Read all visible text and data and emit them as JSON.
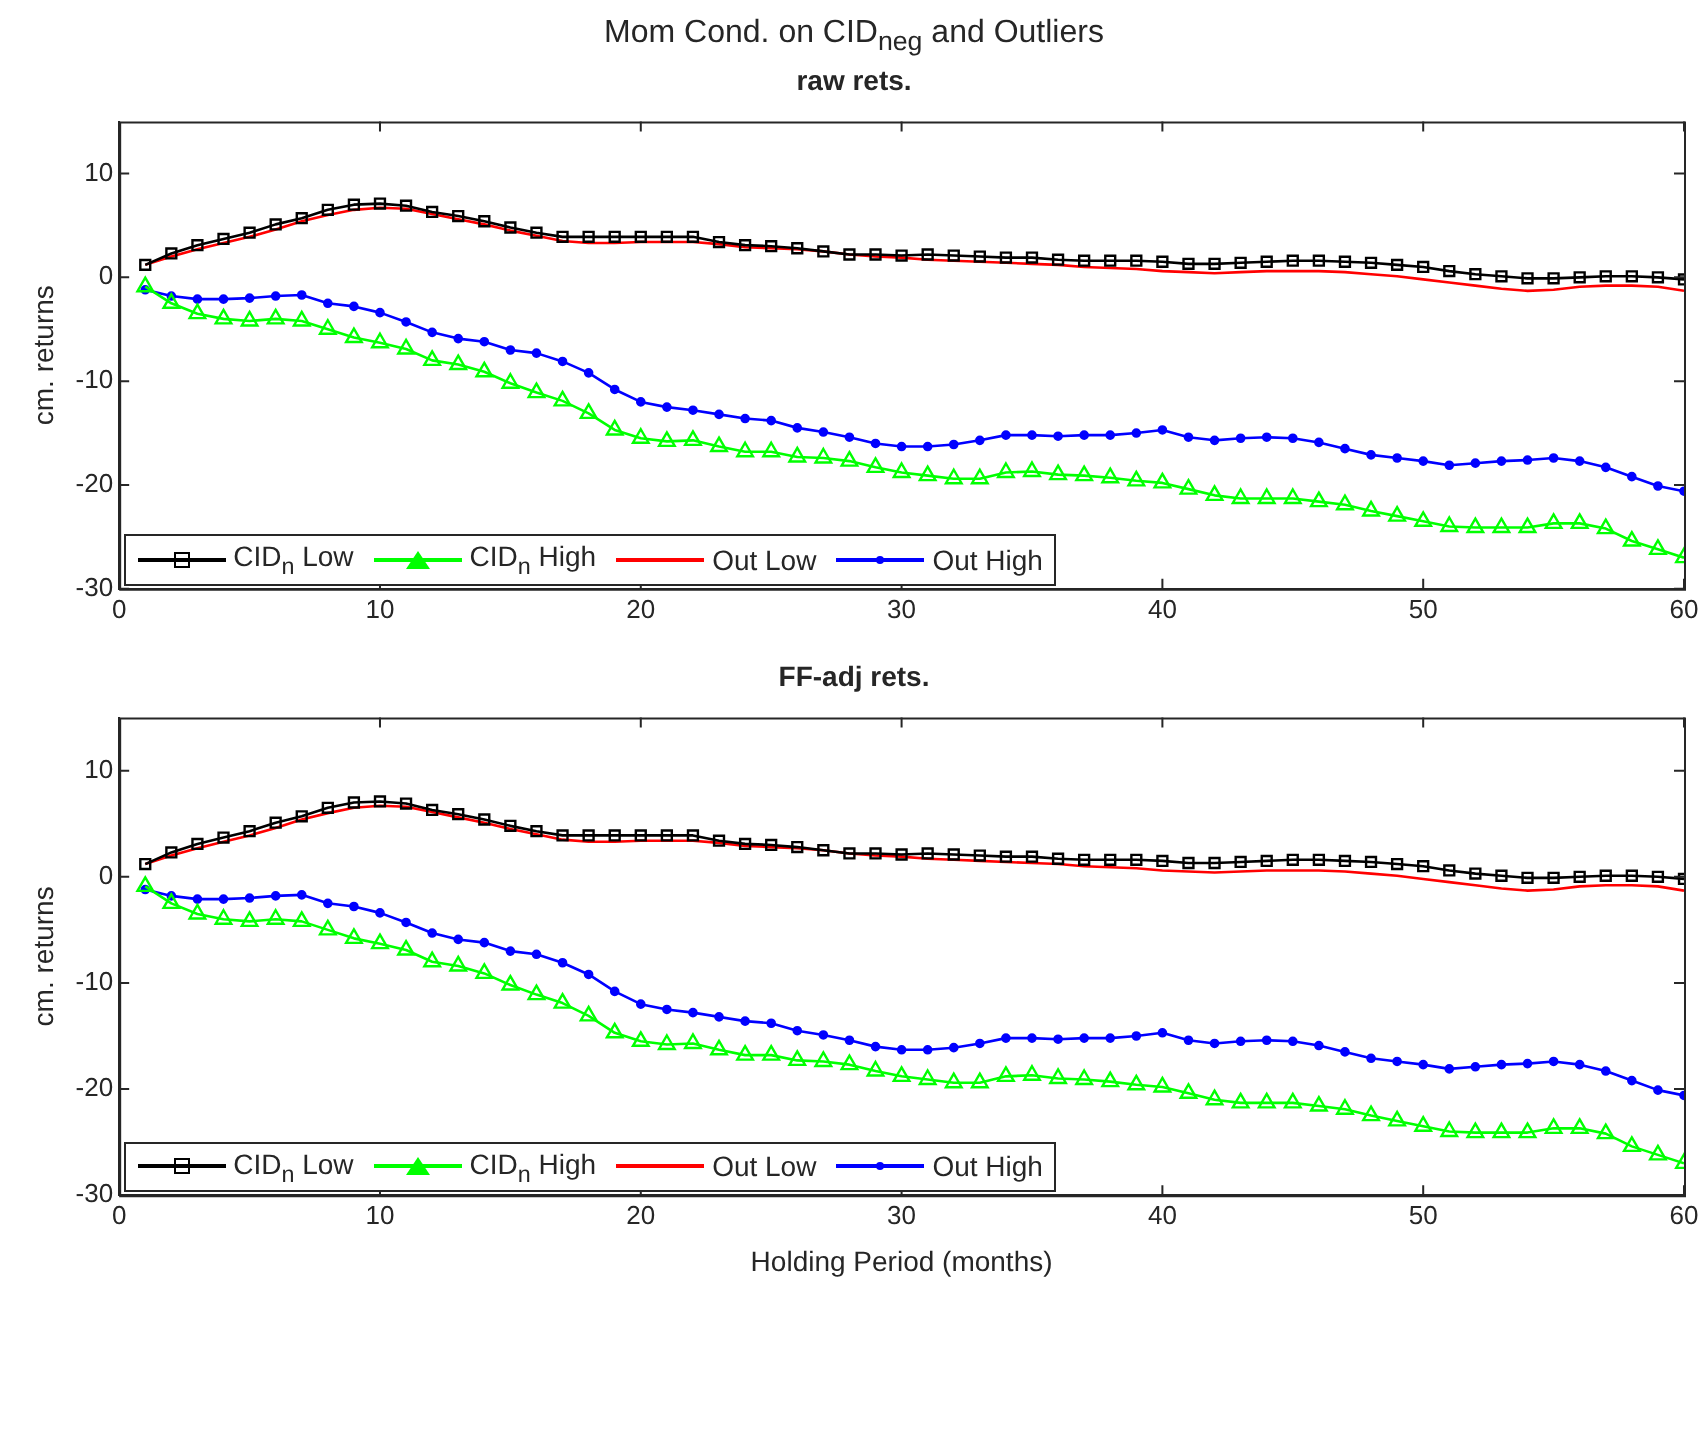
{
  "chart_data": [
    {
      "type": "line",
      "title": "Mom Cond. on CID$_{neg}$ and Outliers",
      "subtitle": "raw rets.",
      "ylabel": "cm. returns",
      "x": [
        1,
        2,
        3,
        4,
        5,
        6,
        7,
        8,
        9,
        10,
        11,
        12,
        13,
        14,
        15,
        16,
        17,
        18,
        19,
        20,
        21,
        22,
        23,
        24,
        25,
        26,
        27,
        28,
        29,
        30,
        31,
        32,
        33,
        34,
        35,
        36,
        37,
        38,
        39,
        40,
        41,
        42,
        43,
        44,
        45,
        46,
        47,
        48,
        49,
        50,
        51,
        52,
        53,
        54,
        55,
        56,
        57,
        58,
        59,
        60
      ],
      "xlim": [
        0,
        60
      ],
      "xticks": [
        0,
        10,
        20,
        30,
        40,
        50,
        60
      ],
      "ylim": [
        -30,
        15
      ],
      "yticks": [
        -30,
        -20,
        -10,
        0,
        10
      ],
      "grid": false,
      "legend": "bottom left",
      "series": [
        {
          "name": "CID$_{n}$ Low",
          "color": "#000000",
          "marker": "square",
          "values": [
            1.2,
            2.3,
            3.1,
            3.7,
            4.3,
            5.1,
            5.7,
            6.5,
            7.0,
            7.1,
            6.9,
            6.3,
            5.9,
            5.4,
            4.8,
            4.3,
            3.9,
            3.9,
            3.9,
            3.9,
            3.9,
            3.9,
            3.4,
            3.1,
            3.0,
            2.8,
            2.5,
            2.2,
            2.2,
            2.1,
            2.2,
            2.1,
            2.0,
            1.9,
            1.9,
            1.7,
            1.6,
            1.6,
            1.6,
            1.5,
            1.3,
            1.3,
            1.4,
            1.5,
            1.6,
            1.6,
            1.5,
            1.4,
            1.2,
            1.0,
            0.6,
            0.3,
            0.1,
            -0.1,
            -0.1,
            0.0,
            0.1,
            0.1,
            0.0,
            -0.2
          ]
        },
        {
          "name": "CID$_{n}$ High",
          "color": "#00ff00",
          "marker": "triangle",
          "values": [
            -0.9,
            -2.5,
            -3.5,
            -4.0,
            -4.2,
            -4.0,
            -4.2,
            -5.0,
            -5.8,
            -6.3,
            -6.9,
            -8.0,
            -8.4,
            -9.1,
            -10.2,
            -11.1,
            -11.9,
            -13.1,
            -14.7,
            -15.5,
            -15.8,
            -15.7,
            -16.3,
            -16.8,
            -16.8,
            -17.3,
            -17.4,
            -17.7,
            -18.3,
            -18.8,
            -19.1,
            -19.4,
            -19.4,
            -18.8,
            -18.7,
            -19.0,
            -19.1,
            -19.3,
            -19.6,
            -19.8,
            -20.4,
            -21.0,
            -21.3,
            -21.3,
            -21.3,
            -21.6,
            -21.9,
            -22.5,
            -23.0,
            -23.5,
            -24.0,
            -24.1,
            -24.1,
            -24.1,
            -23.7,
            -23.7,
            -24.2,
            -25.4,
            -26.2,
            -27.0
          ]
        },
        {
          "name": "Out Low",
          "color": "#ff0000",
          "marker": "none",
          "values": [
            1.2,
            2.0,
            2.7,
            3.3,
            3.9,
            4.6,
            5.4,
            6.0,
            6.5,
            6.7,
            6.6,
            6.1,
            5.6,
            5.1,
            4.5,
            4.0,
            3.5,
            3.3,
            3.3,
            3.4,
            3.4,
            3.4,
            3.2,
            2.9,
            2.8,
            2.7,
            2.5,
            2.2,
            2.0,
            1.9,
            1.7,
            1.6,
            1.5,
            1.4,
            1.3,
            1.2,
            1.0,
            0.9,
            0.8,
            0.6,
            0.5,
            0.4,
            0.5,
            0.6,
            0.6,
            0.6,
            0.5,
            0.3,
            0.1,
            -0.2,
            -0.5,
            -0.8,
            -1.1,
            -1.3,
            -1.2,
            -0.9,
            -0.8,
            -0.8,
            -0.9,
            -1.3
          ]
        },
        {
          "name": "Out High",
          "color": "#0000ff",
          "marker": "circle",
          "values": [
            -1.2,
            -1.8,
            -2.1,
            -2.1,
            -2.0,
            -1.8,
            -1.7,
            -2.5,
            -2.8,
            -3.4,
            -4.3,
            -5.3,
            -5.9,
            -6.2,
            -7.0,
            -7.3,
            -8.1,
            -9.2,
            -10.8,
            -12.0,
            -12.5,
            -12.8,
            -13.2,
            -13.6,
            -13.8,
            -14.5,
            -14.9,
            -15.4,
            -16.0,
            -16.3,
            -16.3,
            -16.1,
            -15.7,
            -15.2,
            -15.2,
            -15.3,
            -15.2,
            -15.2,
            -15.0,
            -14.7,
            -15.4,
            -15.7,
            -15.5,
            -15.4,
            -15.5,
            -15.9,
            -16.5,
            -17.1,
            -17.4,
            -17.7,
            -18.1,
            -17.9,
            -17.7,
            -17.6,
            -17.4,
            -17.7,
            -18.3,
            -19.2,
            -20.1,
            -20.6
          ]
        }
      ]
    },
    {
      "type": "line",
      "title": "FF-adj rets.",
      "xlabel": "Holding Period (months)",
      "ylabel": "cm. returns",
      "x": [
        1,
        2,
        3,
        4,
        5,
        6,
        7,
        8,
        9,
        10,
        11,
        12,
        13,
        14,
        15,
        16,
        17,
        18,
        19,
        20,
        21,
        22,
        23,
        24,
        25,
        26,
        27,
        28,
        29,
        30,
        31,
        32,
        33,
        34,
        35,
        36,
        37,
        38,
        39,
        40,
        41,
        42,
        43,
        44,
        45,
        46,
        47,
        48,
        49,
        50,
        51,
        52,
        53,
        54,
        55,
        56,
        57,
        58,
        59,
        60
      ],
      "xlim": [
        0,
        60
      ],
      "xticks": [
        0,
        10,
        20,
        30,
        40,
        50,
        60
      ],
      "ylim": [
        -30,
        15
      ],
      "yticks": [
        -30,
        -20,
        -10,
        0,
        10
      ],
      "grid": false,
      "legend": "bottom left",
      "series": [
        {
          "name": "CID$_{n}$ Low",
          "color": "#000000",
          "marker": "square",
          "values": [
            1.2,
            2.3,
            3.1,
            3.7,
            4.3,
            5.1,
            5.7,
            6.5,
            7.0,
            7.1,
            6.9,
            6.3,
            5.9,
            5.4,
            4.8,
            4.3,
            3.9,
            3.9,
            3.9,
            3.9,
            3.9,
            3.9,
            3.4,
            3.1,
            3.0,
            2.8,
            2.5,
            2.2,
            2.2,
            2.1,
            2.2,
            2.1,
            2.0,
            1.9,
            1.9,
            1.7,
            1.6,
            1.6,
            1.6,
            1.5,
            1.3,
            1.3,
            1.4,
            1.5,
            1.6,
            1.6,
            1.5,
            1.4,
            1.2,
            1.0,
            0.6,
            0.3,
            0.1,
            -0.1,
            -0.1,
            0.0,
            0.1,
            0.1,
            0.0,
            -0.2
          ]
        },
        {
          "name": "CID$_{n}$ High",
          "color": "#00ff00",
          "marker": "triangle",
          "values": [
            -0.9,
            -2.5,
            -3.5,
            -4.0,
            -4.2,
            -4.0,
            -4.2,
            -5.0,
            -5.8,
            -6.3,
            -6.9,
            -8.0,
            -8.4,
            -9.1,
            -10.2,
            -11.1,
            -11.9,
            -13.1,
            -14.7,
            -15.5,
            -15.8,
            -15.7,
            -16.3,
            -16.8,
            -16.8,
            -17.3,
            -17.4,
            -17.7,
            -18.3,
            -18.8,
            -19.1,
            -19.4,
            -19.4,
            -18.8,
            -18.7,
            -19.0,
            -19.1,
            -19.3,
            -19.6,
            -19.8,
            -20.4,
            -21.0,
            -21.3,
            -21.3,
            -21.3,
            -21.6,
            -21.9,
            -22.5,
            -23.0,
            -23.5,
            -24.0,
            -24.1,
            -24.1,
            -24.1,
            -23.7,
            -23.7,
            -24.2,
            -25.4,
            -26.2,
            -27.0
          ]
        },
        {
          "name": "Out Low",
          "color": "#ff0000",
          "marker": "none",
          "values": [
            1.2,
            2.0,
            2.7,
            3.3,
            3.9,
            4.6,
            5.4,
            6.0,
            6.5,
            6.7,
            6.6,
            6.1,
            5.6,
            5.1,
            4.5,
            4.0,
            3.5,
            3.3,
            3.3,
            3.4,
            3.4,
            3.4,
            3.2,
            2.9,
            2.8,
            2.7,
            2.5,
            2.2,
            2.0,
            1.9,
            1.7,
            1.6,
            1.5,
            1.4,
            1.3,
            1.2,
            1.0,
            0.9,
            0.8,
            0.6,
            0.5,
            0.4,
            0.5,
            0.6,
            0.6,
            0.6,
            0.5,
            0.3,
            0.1,
            -0.2,
            -0.5,
            -0.8,
            -1.1,
            -1.3,
            -1.2,
            -0.9,
            -0.8,
            -0.8,
            -0.9,
            -1.3
          ]
        },
        {
          "name": "Out High",
          "color": "#0000ff",
          "marker": "circle",
          "values": [
            -1.2,
            -1.8,
            -2.1,
            -2.1,
            -2.0,
            -1.8,
            -1.7,
            -2.5,
            -2.8,
            -3.4,
            -4.3,
            -5.3,
            -5.9,
            -6.2,
            -7.0,
            -7.3,
            -8.1,
            -9.2,
            -10.8,
            -12.0,
            -12.5,
            -12.8,
            -13.2,
            -13.6,
            -13.8,
            -14.5,
            -14.9,
            -15.4,
            -16.0,
            -16.3,
            -16.3,
            -16.1,
            -15.7,
            -15.2,
            -15.2,
            -15.3,
            -15.2,
            -15.2,
            -15.0,
            -14.7,
            -15.4,
            -15.7,
            -15.5,
            -15.4,
            -15.5,
            -15.9,
            -16.5,
            -17.1,
            -17.4,
            -17.7,
            -18.1,
            -17.9,
            -17.7,
            -17.6,
            -17.4,
            -17.7,
            -18.3,
            -19.2,
            -20.1,
            -20.6
          ]
        }
      ]
    }
  ]
}
